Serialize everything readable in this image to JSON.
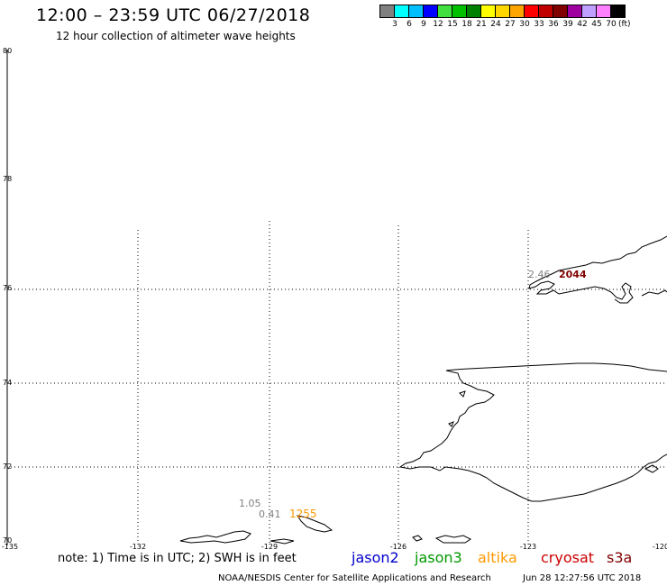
{
  "header": {
    "title": "12:00 – 23:59 UTC 06/27/2018",
    "subtitle": "12 hour collection of altimeter wave heights"
  },
  "color_scale": {
    "labels": [
      "3",
      "6",
      "9",
      "12",
      "15",
      "18",
      "21",
      "24",
      "27",
      "30",
      "33",
      "36",
      "39",
      "42",
      "45",
      "70"
    ],
    "unit": "(ft)",
    "colors": [
      "#808080",
      "#00ffff",
      "#00bfff",
      "#0000ff",
      "#40e040",
      "#00c000",
      "#008000",
      "#ffff00",
      "#ffd700",
      "#ffa500",
      "#ff0000",
      "#c00000",
      "#800000",
      "#a000a0",
      "#c0a0ff",
      "#ff80ff",
      "#000000"
    ]
  },
  "map": {
    "lat_labels": [
      "80",
      "78",
      "76",
      "74",
      "72",
      "70"
    ],
    "lon_labels": [
      "-135",
      "-132",
      "-129",
      "-126",
      "-123",
      "-120"
    ],
    "annotations": [
      {
        "text": "2.46",
        "color": "#808080"
      },
      {
        "text": "2044",
        "color": "#800000"
      },
      {
        "text": "1.05",
        "color": "#808080"
      },
      {
        "text": "0.41",
        "color": "#808080"
      },
      {
        "text": "1255",
        "color": "#ff9900"
      }
    ]
  },
  "footer": {
    "note": "note: 1) Time is in UTC; 2) SWH is in feet",
    "satellites": [
      {
        "name": "jason2",
        "color": "#0000cc"
      },
      {
        "name": "jason3",
        "color": "#009900"
      },
      {
        "name": "altika",
        "color": "#ff9900"
      },
      {
        "name": "cryosat",
        "color": "#cc0000"
      },
      {
        "name": "s3a",
        "color": "#800000"
      }
    ],
    "credit": "NOAA/NESDIS Center for Satellite Applications and Research",
    "timestamp": "Jun 28 12:27:56 UTC 2018"
  }
}
